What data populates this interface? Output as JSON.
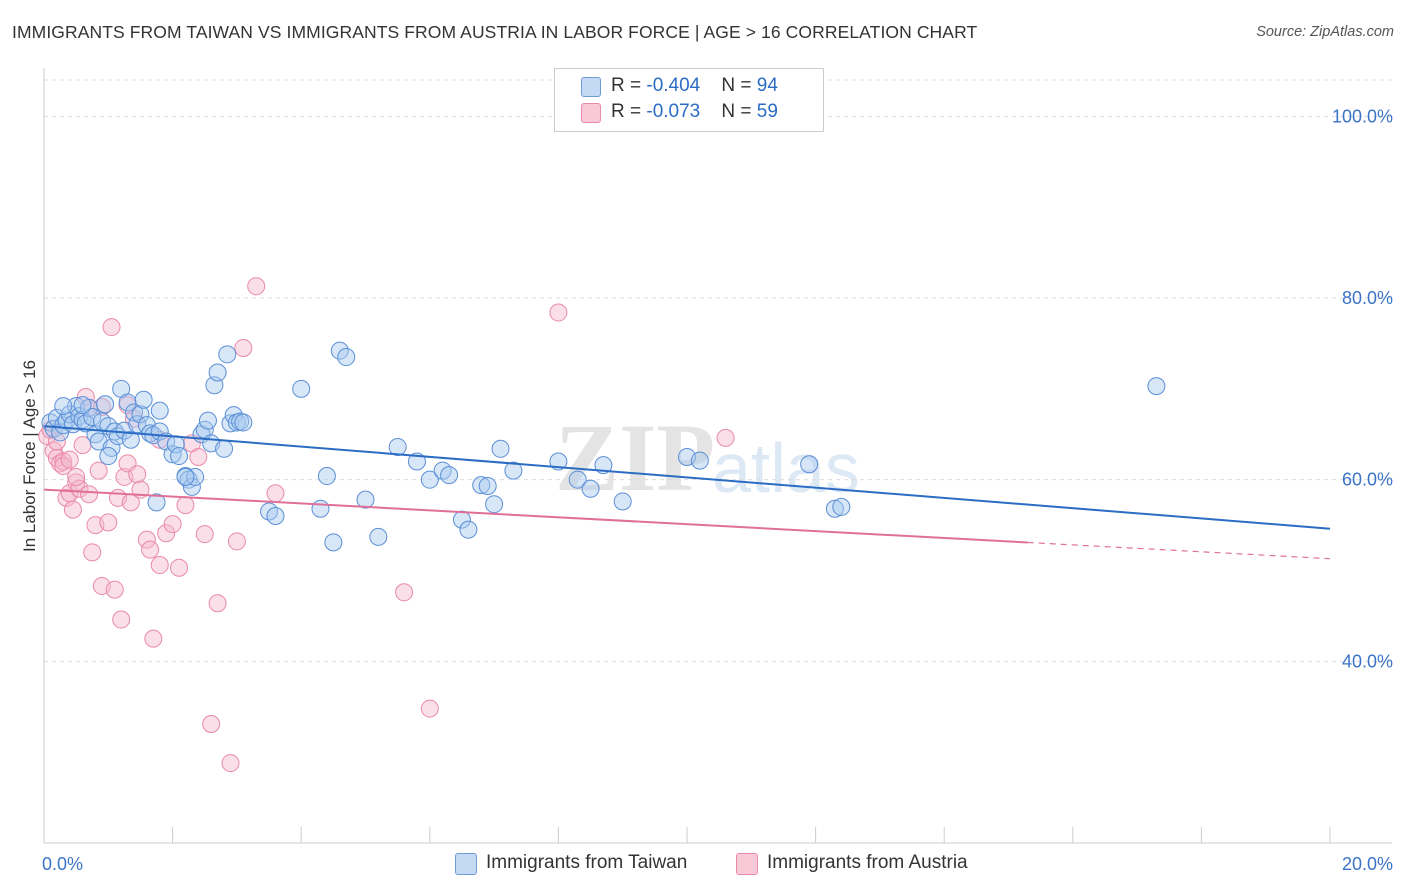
{
  "header": {
    "title": "IMMIGRANTS FROM TAIWAN VS IMMIGRANTS FROM AUSTRIA IN LABOR FORCE | AGE > 16 CORRELATION CHART",
    "source": "Source: ZipAtlas.com"
  },
  "legend": {
    "taiwan": {
      "r_label": "R = ",
      "r_value": "-0.404",
      "n_label": "N = ",
      "n_value": "94"
    },
    "austria": {
      "r_label": "R = ",
      "r_value": "-0.073",
      "n_label": "N = ",
      "n_value": "59"
    }
  },
  "watermark": {
    "zip": "ZIP",
    "atlas": "atlas"
  },
  "colors": {
    "taiwan_fill": "#a9c9f0",
    "taiwan_stroke": "#5b8fd6",
    "taiwan_line": "#2b6cc4",
    "austria_fill": "#f5b8cb",
    "austria_stroke": "#e98aa8",
    "austria_line": "#e0709a",
    "axis_text": "#3b74c7",
    "grid": "#dddddd"
  },
  "chart_data": {
    "type": "scatter",
    "title": "IMMIGRANTS FROM TAIWAN VS IMMIGRANTS FROM AUSTRIA IN LABOR FORCE | AGE > 16 CORRELATION CHART",
    "ylabel": "In Labor Force | Age > 16",
    "xlabel": "",
    "xlim": [
      0,
      20
    ],
    "ylim": [
      20,
      104
    ],
    "x_tick_labels": [
      {
        "value": 0,
        "label": "0.0%"
      },
      {
        "value": 20,
        "label": "20.0%"
      }
    ],
    "y_tick_labels": [
      {
        "value": 40,
        "label": "40.0%"
      },
      {
        "value": 60,
        "label": "60.0%"
      },
      {
        "value": 80,
        "label": "80.0%"
      },
      {
        "value": 100,
        "label": "100.0%"
      }
    ],
    "grid": true,
    "legend_position": "top-center",
    "series": [
      {
        "name": "Immigrants from Taiwan",
        "r": -0.404,
        "n": 94,
        "trend": {
          "x0": 0,
          "y0": 65.9,
          "x1": 20,
          "y1": 54.6,
          "solid_until": 20
        },
        "points": [
          [
            0.1,
            66.3
          ],
          [
            0.15,
            65.6
          ],
          [
            0.2,
            66.8
          ],
          [
            0.25,
            65.2
          ],
          [
            0.3,
            66.0
          ],
          [
            0.35,
            66.5
          ],
          [
            0.4,
            67.2
          ],
          [
            0.45,
            66.1
          ],
          [
            0.5,
            68.1
          ],
          [
            0.55,
            67.0
          ],
          [
            0.6,
            66.6
          ],
          [
            0.65,
            66.2
          ],
          [
            0.7,
            67.9
          ],
          [
            0.75,
            66.9
          ],
          [
            0.8,
            65.0
          ],
          [
            0.85,
            64.2
          ],
          [
            0.9,
            66.4
          ],
          [
            0.95,
            68.3
          ],
          [
            1.0,
            65.9
          ],
          [
            1.05,
            63.5
          ],
          [
            1.1,
            65.3
          ],
          [
            1.15,
            64.8
          ],
          [
            1.2,
            70.0
          ],
          [
            1.25,
            65.4
          ],
          [
            1.3,
            68.5
          ],
          [
            1.35,
            64.4
          ],
          [
            1.4,
            67.4
          ],
          [
            1.45,
            66.1
          ],
          [
            1.5,
            67.2
          ],
          [
            1.55,
            68.8
          ],
          [
            1.6,
            66.0
          ],
          [
            1.65,
            65.1
          ],
          [
            1.7,
            64.9
          ],
          [
            1.75,
            57.5
          ],
          [
            1.8,
            65.3
          ],
          [
            1.9,
            64.2
          ],
          [
            2.0,
            62.8
          ],
          [
            2.05,
            63.9
          ],
          [
            2.1,
            62.6
          ],
          [
            2.2,
            60.4
          ],
          [
            2.25,
            60.0
          ],
          [
            2.3,
            59.2
          ],
          [
            2.35,
            60.3
          ],
          [
            2.45,
            65.0
          ],
          [
            2.5,
            65.5
          ],
          [
            2.55,
            66.5
          ],
          [
            2.6,
            64.0
          ],
          [
            2.65,
            70.4
          ],
          [
            2.7,
            71.8
          ],
          [
            2.8,
            63.4
          ],
          [
            2.85,
            73.8
          ],
          [
            2.9,
            66.2
          ],
          [
            2.95,
            67.1
          ],
          [
            3.0,
            66.3
          ],
          [
            3.05,
            66.4
          ],
          [
            3.1,
            66.3
          ],
          [
            3.5,
            56.5
          ],
          [
            3.6,
            56.0
          ],
          [
            4.0,
            70.0
          ],
          [
            4.3,
            56.8
          ],
          [
            4.4,
            60.4
          ],
          [
            4.5,
            53.1
          ],
          [
            4.6,
            74.2
          ],
          [
            4.7,
            73.5
          ],
          [
            5.0,
            57.8
          ],
          [
            5.2,
            53.7
          ],
          [
            5.5,
            63.6
          ],
          [
            5.8,
            62.0
          ],
          [
            6.0,
            60.0
          ],
          [
            6.2,
            61.0
          ],
          [
            6.3,
            60.5
          ],
          [
            6.5,
            55.6
          ],
          [
            6.6,
            54.5
          ],
          [
            6.8,
            59.4
          ],
          [
            6.9,
            59.3
          ],
          [
            7.0,
            57.3
          ],
          [
            7.1,
            63.4
          ],
          [
            7.3,
            61.0
          ],
          [
            8.0,
            62.0
          ],
          [
            8.3,
            60.0
          ],
          [
            8.5,
            59.0
          ],
          [
            8.7,
            61.6
          ],
          [
            9.0,
            57.6
          ],
          [
            10.0,
            62.5
          ],
          [
            10.2,
            62.1
          ],
          [
            11.9,
            61.7
          ],
          [
            12.3,
            56.8
          ],
          [
            12.4,
            57.0
          ],
          [
            17.3,
            70.3
          ],
          [
            0.3,
            68.1
          ],
          [
            0.6,
            68.2
          ],
          [
            1.0,
            62.6
          ],
          [
            1.8,
            67.6
          ],
          [
            2.2,
            60.3
          ]
        ]
      },
      {
        "name": "Immigrants from Austria",
        "r": -0.073,
        "n": 59,
        "trend": {
          "x0": 0,
          "y0": 58.9,
          "x1": 20,
          "y1": 51.3,
          "solid_until": 15.3
        },
        "points": [
          [
            0.05,
            64.8
          ],
          [
            0.1,
            65.5
          ],
          [
            0.15,
            63.2
          ],
          [
            0.2,
            62.4
          ],
          [
            0.25,
            61.8
          ],
          [
            0.3,
            62.0
          ],
          [
            0.35,
            58.0
          ],
          [
            0.4,
            58.5
          ],
          [
            0.45,
            56.7
          ],
          [
            0.5,
            59.7
          ],
          [
            0.55,
            59.0
          ],
          [
            0.6,
            63.8
          ],
          [
            0.65,
            69.1
          ],
          [
            0.7,
            58.4
          ],
          [
            0.75,
            52.0
          ],
          [
            0.8,
            55.0
          ],
          [
            0.85,
            61.0
          ],
          [
            0.9,
            48.3
          ],
          [
            1.0,
            55.3
          ],
          [
            1.05,
            76.8
          ],
          [
            1.1,
            47.9
          ],
          [
            1.15,
            58.0
          ],
          [
            1.2,
            44.6
          ],
          [
            1.25,
            60.3
          ],
          [
            1.3,
            61.8
          ],
          [
            1.35,
            57.5
          ],
          [
            1.4,
            66.7
          ],
          [
            1.45,
            60.6
          ],
          [
            1.5,
            58.9
          ],
          [
            1.6,
            53.4
          ],
          [
            1.65,
            52.3
          ],
          [
            1.7,
            42.5
          ],
          [
            1.8,
            50.6
          ],
          [
            1.9,
            54.1
          ],
          [
            2.0,
            55.1
          ],
          [
            2.1,
            50.3
          ],
          [
            2.2,
            57.2
          ],
          [
            2.3,
            64.0
          ],
          [
            2.4,
            62.5
          ],
          [
            2.5,
            54.0
          ],
          [
            2.6,
            33.1
          ],
          [
            2.7,
            46.4
          ],
          [
            2.9,
            28.8
          ],
          [
            3.0,
            53.2
          ],
          [
            3.1,
            74.5
          ],
          [
            3.3,
            81.3
          ],
          [
            3.6,
            58.5
          ],
          [
            5.6,
            47.6
          ],
          [
            6.0,
            34.8
          ],
          [
            8.0,
            78.4
          ],
          [
            10.6,
            64.6
          ],
          [
            0.2,
            64.2
          ],
          [
            0.3,
            61.5
          ],
          [
            0.4,
            62.2
          ],
          [
            0.5,
            60.3
          ],
          [
            0.7,
            67.9
          ],
          [
            0.9,
            68.0
          ],
          [
            1.3,
            68.2
          ],
          [
            1.8,
            64.4
          ]
        ]
      }
    ]
  },
  "bottom_legend": {
    "taiwan_label": "Immigrants from Taiwan",
    "austria_label": "Immigrants from Austria"
  }
}
